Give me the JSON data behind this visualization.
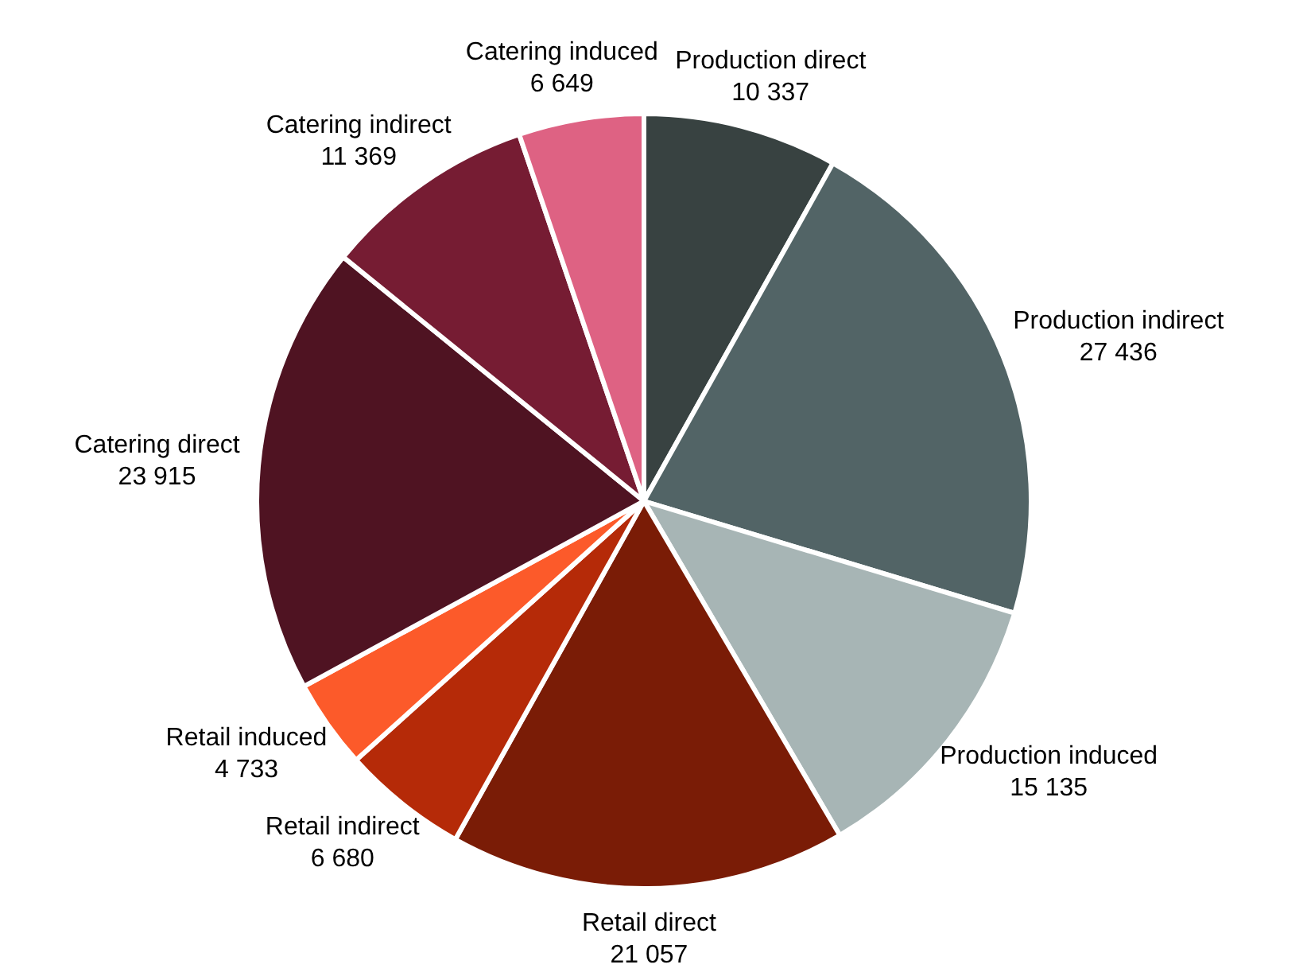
{
  "chart_data": {
    "type": "pie",
    "categories": [
      "Production direct",
      "Production indirect",
      "Production induced",
      "Retail direct",
      "Retail indirect",
      "Retail induced",
      "Catering direct",
      "Catering indirect",
      "Catering induced"
    ],
    "values": [
      10337,
      27436,
      15135,
      21057,
      6680,
      4733,
      23915,
      11369,
      6649
    ],
    "value_labels": [
      "10 337",
      "27 436",
      "15 135",
      "21 057",
      "6 680",
      "4 733",
      "23 915",
      "11 369",
      "6 649"
    ],
    "colors": [
      "#384241",
      "#526466",
      "#a7b5b5",
      "#7a1c06",
      "#b52a08",
      "#fc5a2a",
      "#4f1322",
      "#761c33",
      "#de6283"
    ],
    "legend": false
  }
}
